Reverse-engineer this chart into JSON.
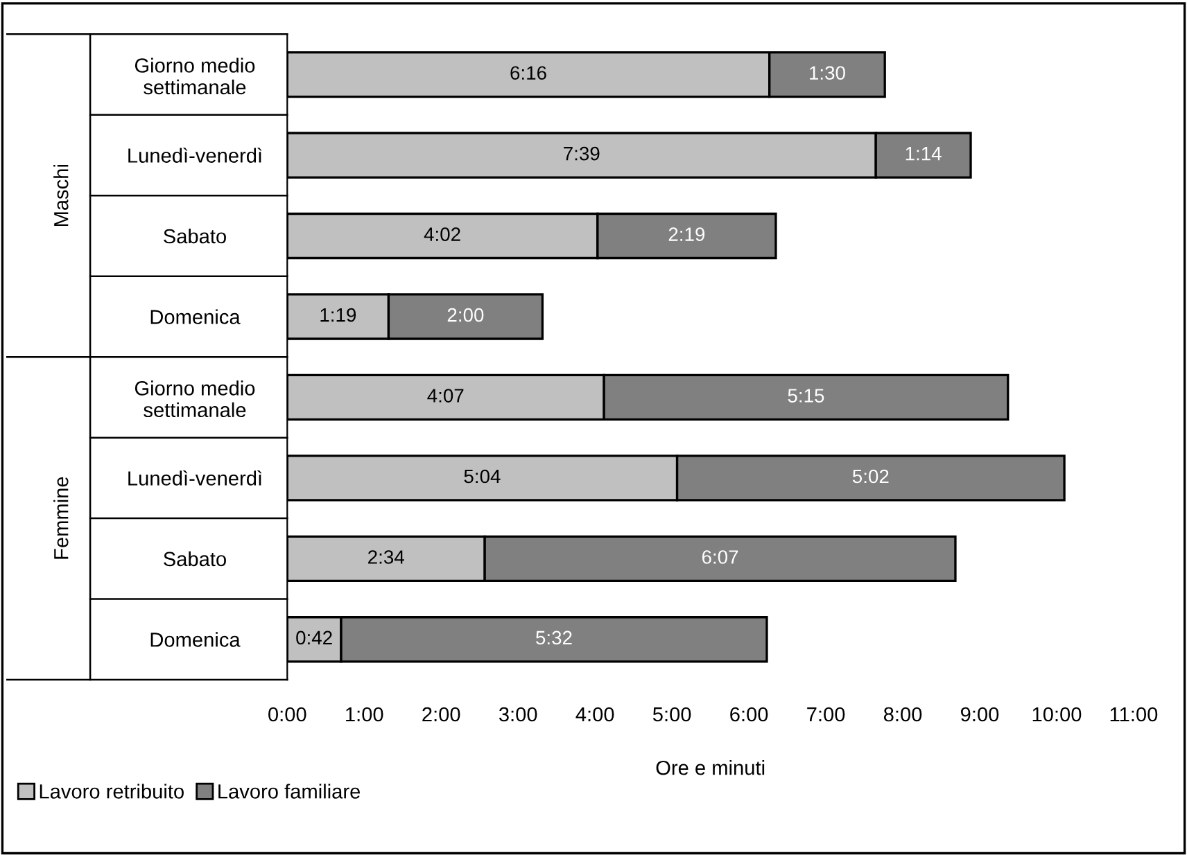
{
  "chart_data": {
    "type": "bar",
    "orientation": "horizontal",
    "stacked": true,
    "categories": [
      "Giorno medio\nsettimanale",
      "Lunedì-venerdì",
      "Sabato",
      "Domenica",
      "Giorno medio\nsettimanale",
      "Lunedì-venerdì",
      "Sabato",
      "Domenica"
    ],
    "series": [
      {
        "name": "Lavoro retribuito",
        "color": "#c0c0c0",
        "values": [
          6.267,
          7.65,
          4.033,
          1.317,
          4.117,
          5.067,
          2.567,
          0.7
        ],
        "value_labels": [
          "6:16",
          "7:39",
          "4:02",
          "1:19",
          "4:07",
          "5:04",
          "2:34",
          "0:42"
        ]
      },
      {
        "name": "Lavoro familiare",
        "color": "#808080",
        "values": [
          1.5,
          1.233,
          2.317,
          2.0,
          5.25,
          5.033,
          6.117,
          5.533
        ],
        "value_labels": [
          "1:30",
          "1:14",
          "2:19",
          "2:00",
          "5:15",
          "5:02",
          "6:07",
          "5:32"
        ]
      }
    ],
    "annotations": [
      "Maschi",
      "Femmine"
    ],
    "xlabel": "Ore e minuti",
    "xlim": [
      0,
      11
    ],
    "xticks": [
      {
        "value": 0,
        "label": "0:00"
      },
      {
        "value": 1,
        "label": "1:00"
      },
      {
        "value": 2,
        "label": "2:00"
      },
      {
        "value": 3,
        "label": "3:00"
      },
      {
        "value": 4,
        "label": "4:00"
      },
      {
        "value": 5,
        "label": "5:00"
      },
      {
        "value": 6,
        "label": "6:00"
      },
      {
        "value": 7,
        "label": "7:00"
      },
      {
        "value": 8,
        "label": "8:00"
      },
      {
        "value": 9,
        "label": "9:00"
      },
      {
        "value": 10,
        "label": "10:00"
      },
      {
        "value": 11,
        "label": "11:00"
      }
    ],
    "legend": "bottom left",
    "grid": false
  }
}
